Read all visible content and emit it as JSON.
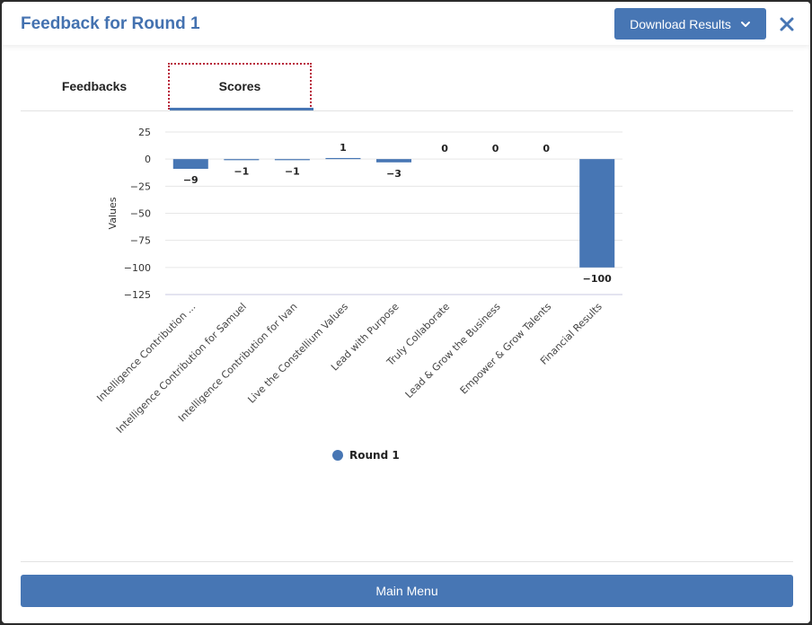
{
  "modal": {
    "title": "Feedback for Round 1",
    "download_label": "Download Results",
    "main_menu_label": "Main Menu"
  },
  "tabs": [
    {
      "label": "Feedbacks",
      "active": false
    },
    {
      "label": "Scores",
      "active": true
    }
  ],
  "colors": {
    "accent": "#4776b4",
    "title": "#4472b0",
    "focus_outline": "#b8233a"
  },
  "icons": {
    "download_chevron": "chevron-down-icon",
    "close": "close-icon",
    "legend_marker": "circle-icon"
  },
  "chart_data": {
    "type": "bar",
    "ylabel": "Values",
    "ylim": [
      -125,
      25
    ],
    "yticks": [
      25,
      0,
      -25,
      -50,
      -75,
      -100,
      -125
    ],
    "grid": true,
    "legend_position": "bottom",
    "categories": [
      "Intelligence Contribution ...",
      "Intelligence Contribution for Samuel",
      "Intelligence Contribution for Ivan",
      "Live the Constellium Values",
      "Lead with Purpose",
      "Truly Collaborate",
      "Lead & Grow the Business",
      "Empower & Grow Talents",
      "Financial Results"
    ],
    "series": [
      {
        "name": "Round 1",
        "color": "#4776b4",
        "values": [
          -9,
          -1,
          -1,
          1,
          -3,
          0,
          0,
          0,
          -100
        ],
        "value_labels": [
          "−9",
          "−1",
          "−1",
          "1",
          "−3",
          "0",
          "0",
          "0",
          "−100"
        ]
      }
    ]
  }
}
